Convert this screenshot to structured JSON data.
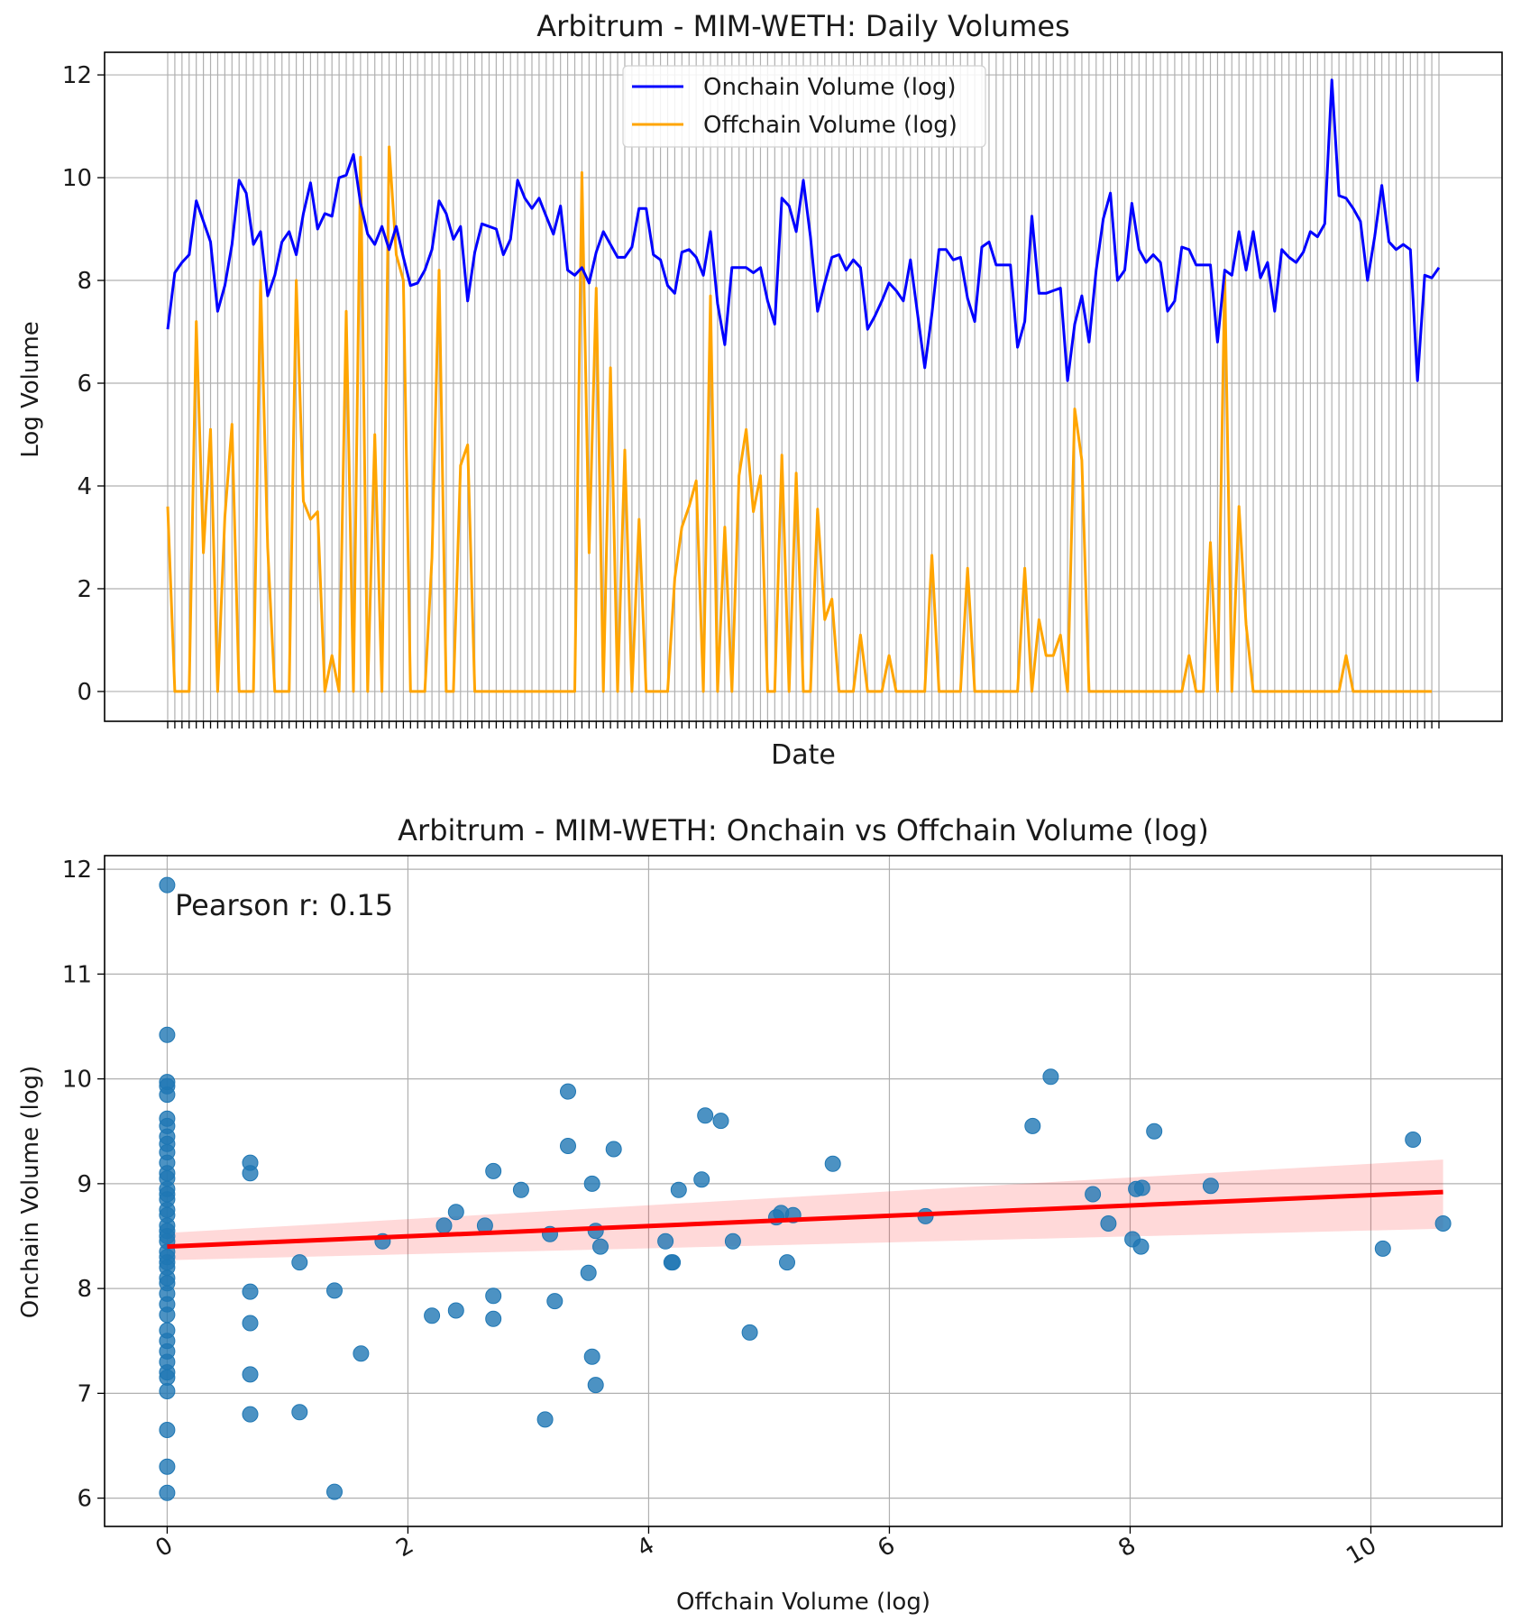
{
  "chart_data": [
    {
      "type": "line",
      "title": "Arbitrum - MIM-WETH: Daily Volumes",
      "xlabel": "Date",
      "ylabel": "Log Volume",
      "ylim": [
        -0.58,
        12.44
      ],
      "yticks": [
        "0",
        "2",
        "4",
        "6",
        "8",
        "10",
        "12"
      ],
      "grid": true,
      "legend_position": "upper-center",
      "series": [
        {
          "name": "Onchain Volume (log)",
          "color": "#0000ff",
          "values": [
            7.05,
            8.15,
            8.35,
            8.5,
            9.55,
            9.15,
            8.75,
            7.4,
            7.9,
            8.7,
            9.95,
            9.7,
            8.7,
            8.95,
            7.7,
            8.1,
            8.75,
            8.95,
            8.5,
            9.3,
            9.9,
            9.0,
            9.3,
            9.25,
            10.0,
            10.05,
            10.45,
            9.5,
            8.9,
            8.7,
            9.05,
            8.6,
            9.05,
            8.45,
            7.9,
            7.95,
            8.2,
            8.6,
            9.55,
            9.3,
            8.8,
            9.05,
            7.6,
            8.55,
            9.1,
            9.05,
            9.0,
            8.5,
            8.8,
            9.95,
            9.6,
            9.4,
            9.6,
            9.25,
            8.9,
            9.45,
            8.2,
            8.1,
            8.25,
            7.95,
            8.55,
            8.95,
            8.7,
            8.45,
            8.45,
            8.65,
            9.4,
            9.4,
            8.5,
            8.4,
            7.9,
            7.75,
            8.55,
            8.6,
            8.45,
            8.1,
            8.95,
            7.55,
            6.75,
            8.25,
            8.25,
            8.25,
            8.15,
            8.25,
            7.6,
            7.15,
            9.6,
            9.45,
            8.95,
            9.95,
            8.85,
            7.4,
            7.95,
            8.45,
            8.5,
            8.2,
            8.4,
            8.25,
            7.05,
            7.3,
            7.6,
            7.95,
            7.8,
            7.6,
            8.4,
            7.35,
            6.3,
            7.35,
            8.6,
            8.6,
            8.4,
            8.45,
            7.65,
            7.2,
            8.65,
            8.75,
            8.3,
            8.3,
            8.3,
            6.7,
            7.2,
            9.25,
            7.75,
            7.75,
            7.8,
            7.85,
            6.05,
            7.15,
            7.7,
            6.8,
            8.2,
            9.2,
            9.7,
            8.0,
            8.2,
            9.5,
            8.6,
            8.35,
            8.5,
            8.35,
            7.4,
            7.6,
            8.65,
            8.6,
            8.3,
            8.3,
            8.3,
            6.8,
            8.2,
            8.1,
            8.95,
            8.2,
            8.95,
            8.05,
            8.35,
            7.4,
            8.6,
            8.45,
            8.35,
            8.55,
            8.95,
            8.85,
            9.1,
            11.9,
            9.65,
            9.6,
            9.4,
            9.15,
            8.0,
            8.85,
            9.85,
            8.75,
            8.6,
            8.7,
            8.6,
            6.05,
            8.1,
            8.05,
            8.25
          ]
        },
        {
          "name": "Offchain Volume (log)",
          "color": "#ffa500",
          "values": [
            3.6,
            0,
            0,
            0,
            7.2,
            2.7,
            5.1,
            0,
            3.4,
            5.2,
            0,
            0,
            0,
            8.0,
            2.8,
            0,
            0,
            0,
            8.0,
            3.7,
            3.35,
            3.5,
            0,
            0.7,
            0,
            7.4,
            0,
            10.4,
            0,
            5.0,
            0,
            10.6,
            8.5,
            8.0,
            0,
            0,
            0,
            2.6,
            8.2,
            0,
            0,
            4.4,
            4.8,
            0,
            0,
            0,
            0,
            0,
            0,
            0,
            0,
            0,
            0,
            0,
            0,
            0,
            0,
            0,
            10.1,
            2.7,
            7.85,
            0,
            6.3,
            0,
            4.7,
            0,
            3.35,
            0,
            0,
            0,
            0,
            2.2,
            3.2,
            3.6,
            4.1,
            0,
            7.7,
            0,
            3.2,
            0,
            4.2,
            5.1,
            3.5,
            4.2,
            0,
            0,
            4.6,
            0,
            4.25,
            0,
            0,
            3.55,
            1.4,
            1.8,
            0,
            0,
            0,
            1.1,
            0,
            0,
            0,
            0.7,
            0,
            0,
            0,
            0,
            0,
            2.65,
            0,
            0,
            0,
            0,
            2.4,
            0,
            0,
            0,
            0,
            0,
            0,
            0,
            2.4,
            0,
            1.4,
            0.7,
            0.7,
            1.1,
            0,
            5.5,
            4.5,
            0,
            0,
            0,
            0,
            0,
            0,
            0,
            0,
            0,
            0,
            0,
            0,
            0,
            0,
            0.7,
            0,
            0,
            2.9,
            0,
            8.1,
            0,
            3.6,
            1.3,
            0,
            0,
            0,
            0,
            0,
            0,
            0,
            0,
            0,
            0,
            0,
            0,
            0,
            0.7,
            0,
            0,
            0,
            0,
            0,
            0,
            0,
            0,
            0,
            0,
            0,
            0
          ]
        }
      ]
    },
    {
      "type": "scatter",
      "title": "Arbitrum - MIM-WETH: Onchain vs Offchain Volume (log)",
      "xlabel": "Offchain Volume (log)",
      "ylabel": "Onchain Volume (log)",
      "xlim": [
        -0.52,
        11.09
      ],
      "ylim": [
        5.73,
        12.13
      ],
      "xticks": [
        "0",
        "2",
        "4",
        "6",
        "8",
        "10"
      ],
      "yticks": [
        "6",
        "7",
        "8",
        "9",
        "10",
        "11",
        "12"
      ],
      "grid": true,
      "annotation": "Pearson r: 0.15",
      "point_color": "#1f77b4",
      "regression": {
        "color": "#ff0000",
        "x": [
          0,
          10.6
        ],
        "y": [
          8.4,
          8.92
        ],
        "ci_low": [
          8.27,
          8.57
        ],
        "ci_high": [
          8.53,
          9.23
        ]
      },
      "points": [
        [
          0,
          11.85
        ],
        [
          0,
          10.42
        ],
        [
          0,
          9.97
        ],
        [
          0,
          9.93
        ],
        [
          0,
          9.85
        ],
        [
          0,
          9.62
        ],
        [
          0,
          9.55
        ],
        [
          0,
          9.45
        ],
        [
          0,
          9.38
        ],
        [
          0,
          9.3
        ],
        [
          0,
          9.2
        ],
        [
          0,
          9.1
        ],
        [
          0,
          9.05
        ],
        [
          0,
          8.95
        ],
        [
          0,
          8.9
        ],
        [
          0,
          8.85
        ],
        [
          0,
          8.75
        ],
        [
          0,
          8.7
        ],
        [
          0,
          8.6
        ],
        [
          0,
          8.55
        ],
        [
          0,
          8.5
        ],
        [
          0,
          8.45
        ],
        [
          0,
          8.35
        ],
        [
          0,
          8.3
        ],
        [
          0,
          8.25
        ],
        [
          0,
          8.2
        ],
        [
          0,
          8.1
        ],
        [
          0,
          8.05
        ],
        [
          0,
          7.95
        ],
        [
          0,
          7.85
        ],
        [
          0,
          7.75
        ],
        [
          0,
          7.6
        ],
        [
          0,
          7.5
        ],
        [
          0,
          7.4
        ],
        [
          0,
          7.3
        ],
        [
          0,
          7.2
        ],
        [
          0,
          7.15
        ],
        [
          0,
          7.02
        ],
        [
          0,
          6.65
        ],
        [
          0,
          6.3
        ],
        [
          0,
          6.05
        ],
        [
          0.69,
          9.2
        ],
        [
          0.69,
          9.1
        ],
        [
          0.69,
          7.97
        ],
        [
          0.69,
          7.67
        ],
        [
          0.69,
          7.18
        ],
        [
          0.69,
          6.8
        ],
        [
          1.1,
          8.25
        ],
        [
          1.1,
          6.82
        ],
        [
          1.39,
          7.98
        ],
        [
          1.39,
          6.06
        ],
        [
          1.61,
          7.38
        ],
        [
          1.79,
          8.45
        ],
        [
          2.2,
          7.74
        ],
        [
          2.3,
          8.6
        ],
        [
          2.4,
          8.73
        ],
        [
          2.4,
          7.79
        ],
        [
          2.64,
          8.6
        ],
        [
          2.71,
          9.12
        ],
        [
          2.71,
          7.93
        ],
        [
          2.71,
          7.71
        ],
        [
          2.94,
          8.94
        ],
        [
          3.14,
          6.75
        ],
        [
          3.18,
          8.52
        ],
        [
          3.22,
          7.88
        ],
        [
          3.33,
          9.88
        ],
        [
          3.33,
          9.36
        ],
        [
          3.5,
          8.15
        ],
        [
          3.53,
          9.0
        ],
        [
          3.53,
          7.35
        ],
        [
          3.56,
          8.55
        ],
        [
          3.56,
          7.08
        ],
        [
          3.6,
          8.4
        ],
        [
          3.71,
          9.33
        ],
        [
          4.14,
          8.45
        ],
        [
          4.19,
          8.25
        ],
        [
          4.2,
          8.25
        ],
        [
          4.25,
          8.94
        ],
        [
          4.44,
          9.04
        ],
        [
          4.47,
          9.65
        ],
        [
          4.6,
          9.6
        ],
        [
          4.7,
          8.45
        ],
        [
          4.84,
          7.58
        ],
        [
          5.06,
          8.68
        ],
        [
          5.1,
          8.72
        ],
        [
          5.15,
          8.25
        ],
        [
          5.2,
          8.7
        ],
        [
          5.53,
          9.19
        ],
        [
          6.3,
          8.69
        ],
        [
          7.19,
          9.55
        ],
        [
          7.34,
          10.02
        ],
        [
          7.69,
          8.9
        ],
        [
          7.82,
          8.62
        ],
        [
          8.02,
          8.47
        ],
        [
          8.05,
          8.95
        ],
        [
          8.1,
          8.96
        ],
        [
          8.09,
          8.4
        ],
        [
          8.2,
          9.5
        ],
        [
          8.67,
          8.98
        ],
        [
          10.1,
          8.38
        ],
        [
          10.35,
          9.42
        ],
        [
          10.6,
          8.62
        ]
      ]
    }
  ]
}
